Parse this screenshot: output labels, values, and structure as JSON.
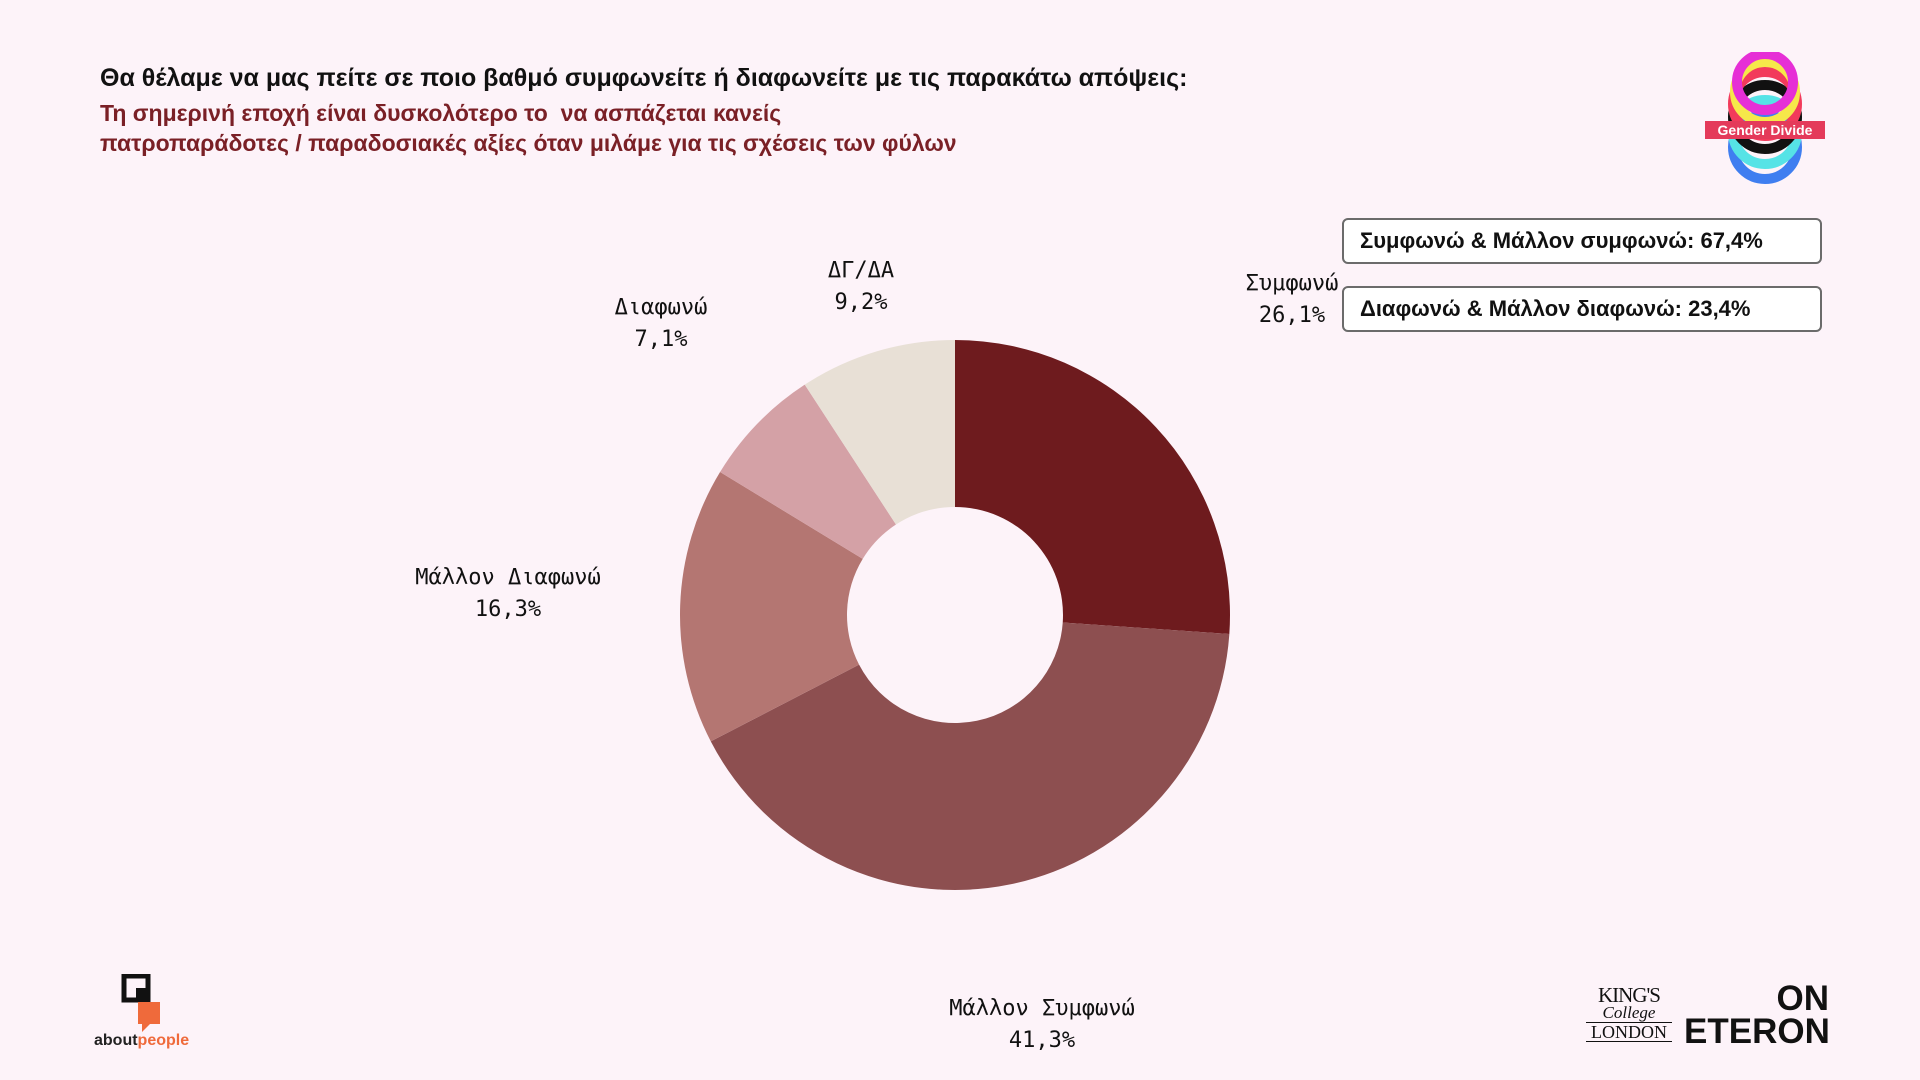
{
  "header": {
    "title": "Θα θέλαμε να μας πείτε σε ποιο βαθμό συμφωνείτε ή διαφωνείτε με τις παρακάτω απόψεις:",
    "subtitle_line1": "Τη σημερινή εποχή είναι δυσκολότερο το  να ασπάζεται κανείς",
    "subtitle_line2": "πατροπαράδοτες / παραδοσιακές αξίες όταν μιλάμε για τις σχέσεις των φύλων"
  },
  "summary": {
    "agree_total": "Συμφωνώ & Μάλλον συμφωνώ: 67,4%",
    "disagree_total": "Διαφωνώ & Μάλλον διαφωνώ: 23,4%"
  },
  "logos": {
    "badge": "Gender Divide",
    "aboutpeople_prefix": "about",
    "aboutpeople_suffix": "people",
    "kings_line1": "KING'S",
    "kings_line2": "College",
    "kings_line3": "LONDON",
    "eteron_line1": "ON",
    "eteron_line2": "ETERON"
  },
  "chart_data": {
    "type": "pie",
    "donut": true,
    "start": "top, clockwise",
    "categories": [
      "Συμφωνώ",
      "Μάλλον Συμφωνώ",
      "Μάλλον Διαφωνώ",
      "Διαφωνώ",
      "ΔΓ/ΔΑ"
    ],
    "values": [
      26.1,
      41.3,
      16.3,
      7.1,
      9.2
    ],
    "value_labels": [
      "26,1%",
      "41,3%",
      "16,3%",
      "7,1%",
      "9,2%"
    ],
    "colors": [
      "#6e1b1e",
      "#8d4f50",
      "#b47672",
      "#d4a1a6",
      "#e8e0d6"
    ]
  }
}
